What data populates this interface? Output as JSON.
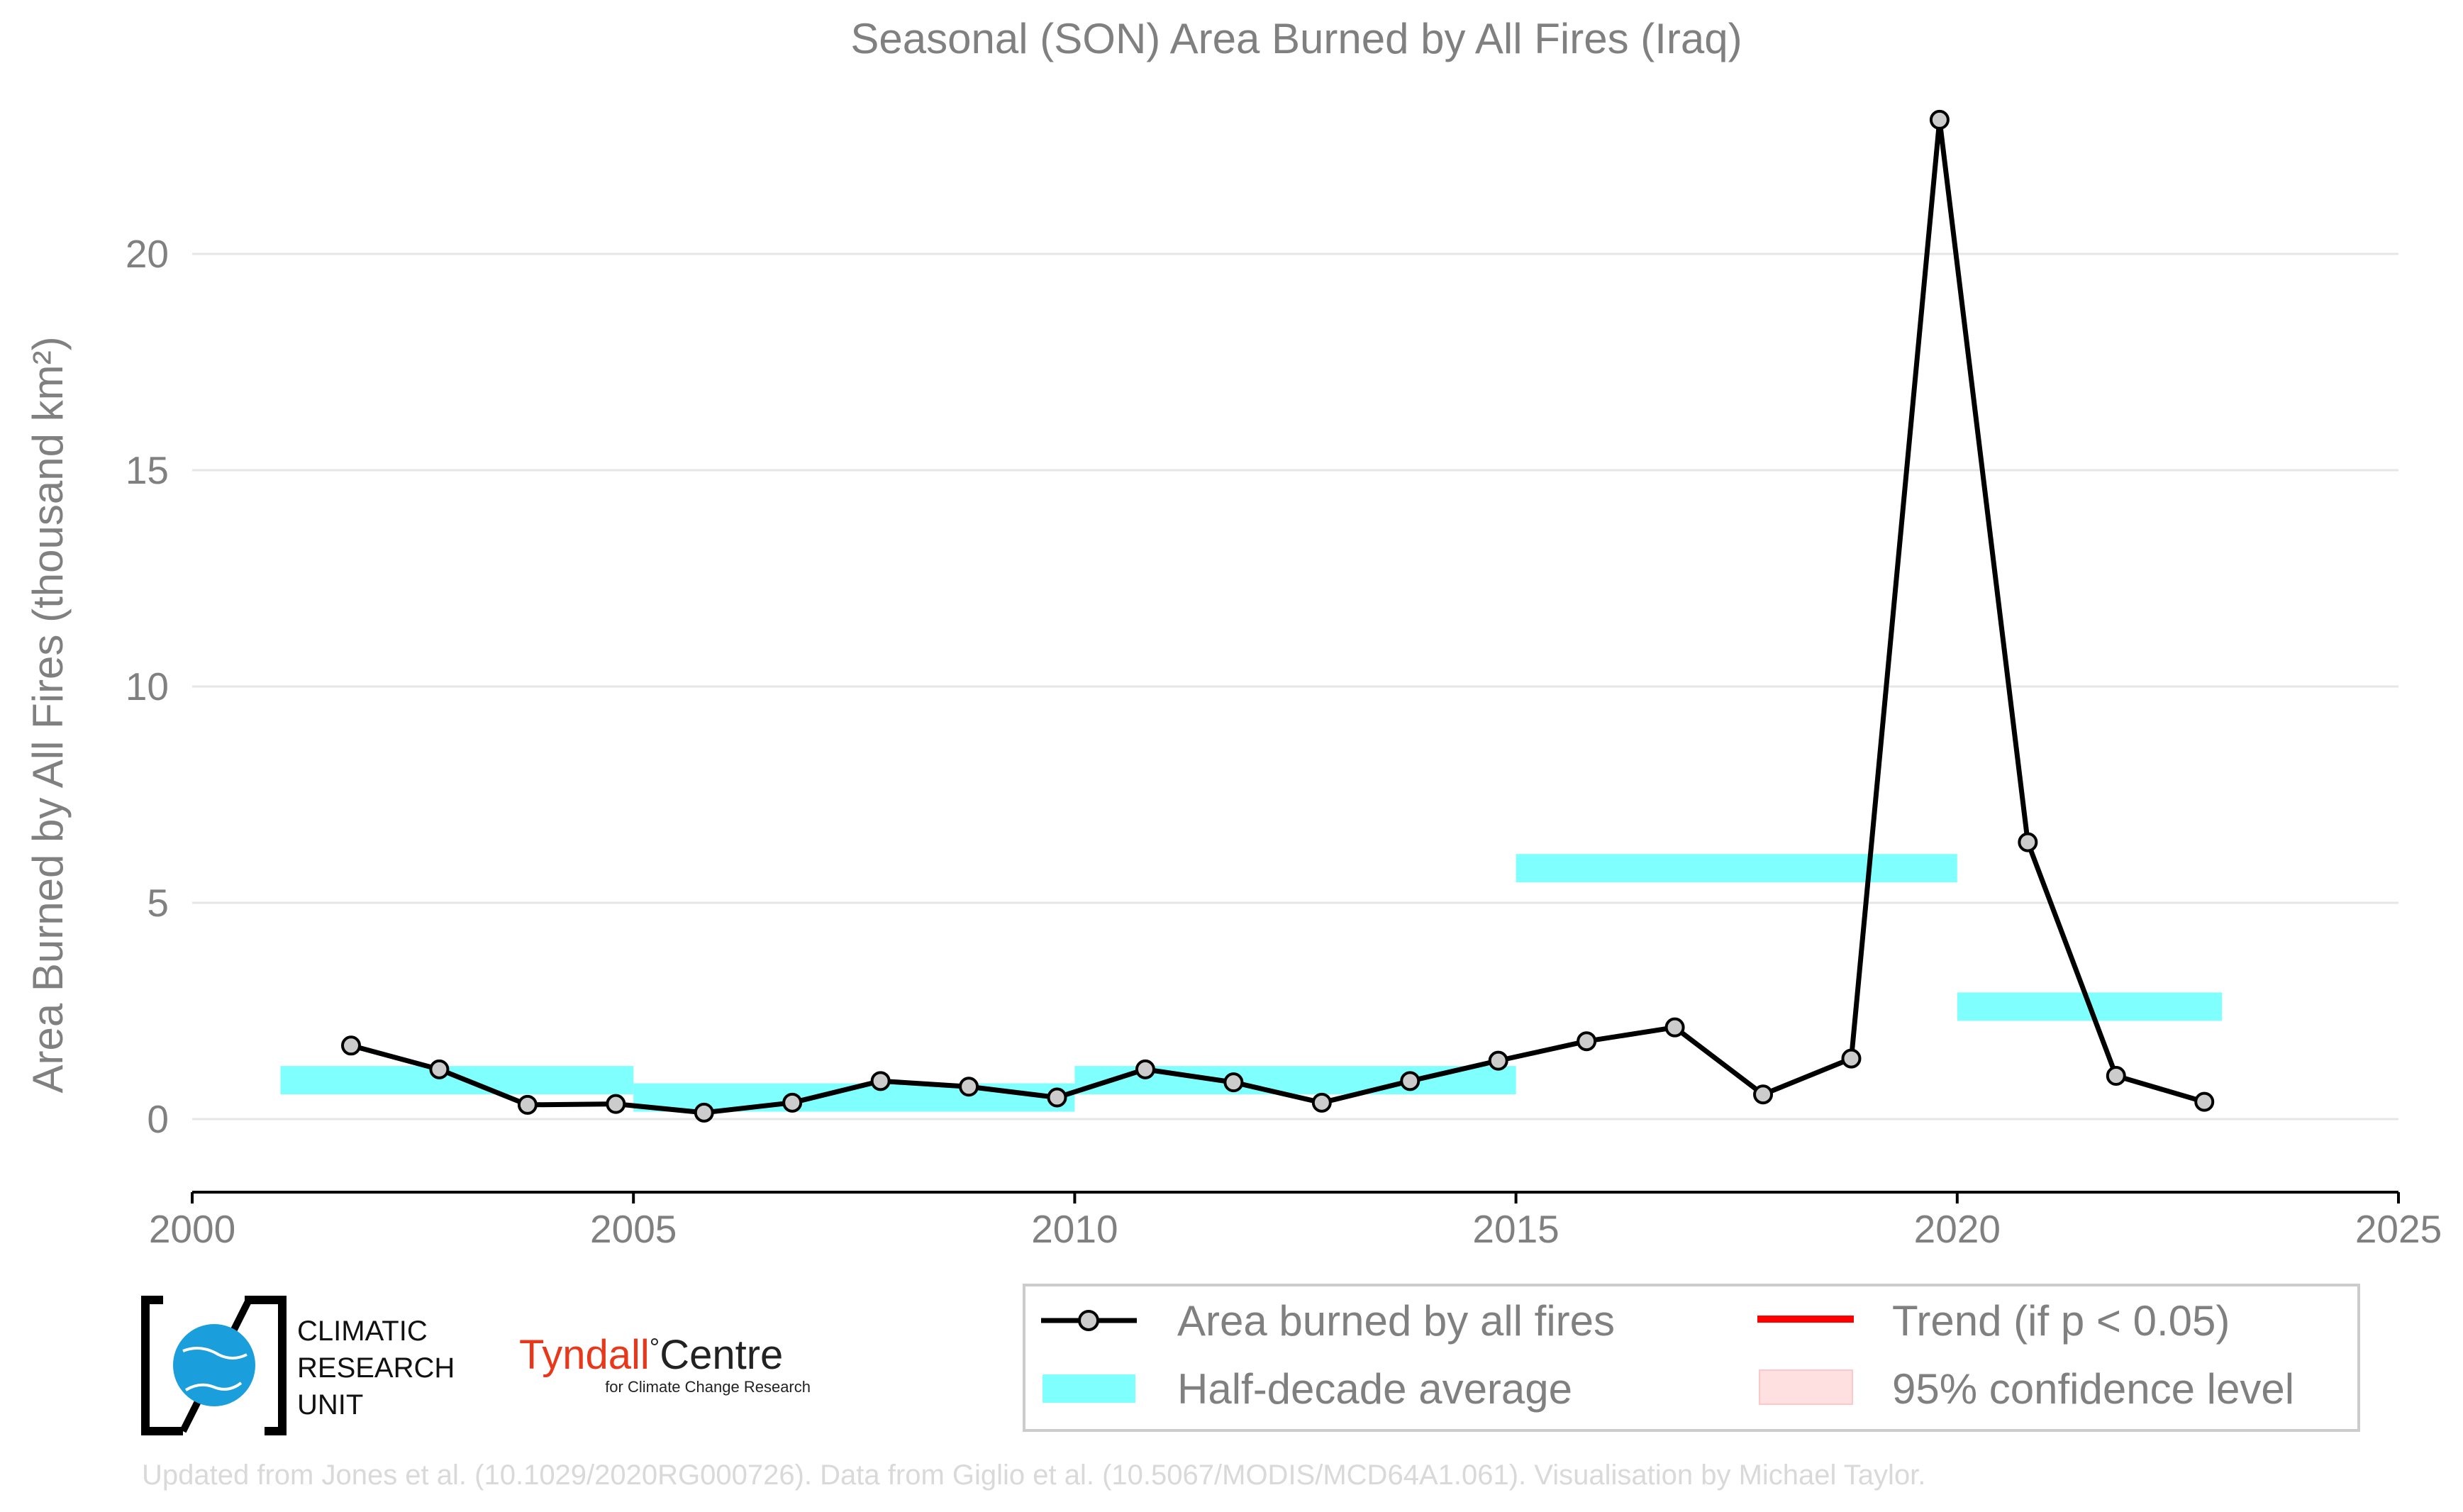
{
  "chart_data": {
    "type": "line",
    "title": "Seasonal (SON) Area Burned by All Fires (Iraq)",
    "ylabel": "Area Burned by All Fires (thousand km²)",
    "xlabel": "",
    "xlim": [
      2000,
      2025
    ],
    "ylim": [
      -1.6,
      23.5
    ],
    "x_ticks": [
      "2000",
      "2005",
      "2010",
      "2015",
      "2020",
      "2025"
    ],
    "y_ticks": [
      "0",
      "5",
      "10",
      "15",
      "20"
    ],
    "grid": "horizontal",
    "series": [
      {
        "name": "Area burned by all fires",
        "color": "#000000",
        "marker_color": "#cccccc",
        "x": [
          2001.8,
          2002.8,
          2003.8,
          2004.8,
          2005.8,
          2006.8,
          2007.8,
          2008.8,
          2009.8,
          2010.8,
          2011.8,
          2012.8,
          2013.8,
          2014.8,
          2015.8,
          2016.8,
          2017.8,
          2018.8,
          2019.8,
          2020.8,
          2021.8,
          2022.8
        ],
        "values": [
          1.7,
          1.15,
          0.33,
          0.35,
          0.15,
          0.38,
          0.88,
          0.75,
          0.5,
          1.15,
          0.85,
          0.38,
          0.88,
          1.35,
          1.8,
          2.12,
          0.57,
          1.4,
          23.1,
          6.4,
          1.0,
          0.4
        ]
      }
    ],
    "half_decade_average": {
      "name": "Half-decade average",
      "color": "#80ffff",
      "segments": [
        {
          "x_start": 2001,
          "x_end": 2005,
          "value": 0.9
        },
        {
          "x_start": 2005,
          "x_end": 2010,
          "value": 0.5
        },
        {
          "x_start": 2010,
          "x_end": 2015,
          "value": 0.9
        },
        {
          "x_start": 2015,
          "x_end": 2020,
          "value": 5.8
        },
        {
          "x_start": 2020,
          "x_end": 2023,
          "value": 2.6
        }
      ]
    },
    "legend": {
      "placement": "bottom-right",
      "entries": [
        {
          "label": "Area burned by all fires",
          "color": "#000000"
        },
        {
          "label": "Trend (if p < 0.05)",
          "color": "#ff0000"
        },
        {
          "label": "Half-decade average",
          "color": "#80ffff"
        },
        {
          "label": "95% confidence level",
          "color": "#ffe0e0"
        }
      ]
    }
  },
  "logos": {
    "cru_lines": [
      "CLIMATIC",
      "RESEARCH",
      "UNIT"
    ],
    "tyndall_main": "Tyndall",
    "tyndall_degree": "°",
    "tyndall_centre": "Centre",
    "tyndall_sub": "for Climate Change Research"
  },
  "credit": "Updated from Jones et al. (10.1029/2020RG000726). Data from Giglio et al. (10.5067/MODIS/MCD64A1.061). Visualisation by Michael Taylor."
}
